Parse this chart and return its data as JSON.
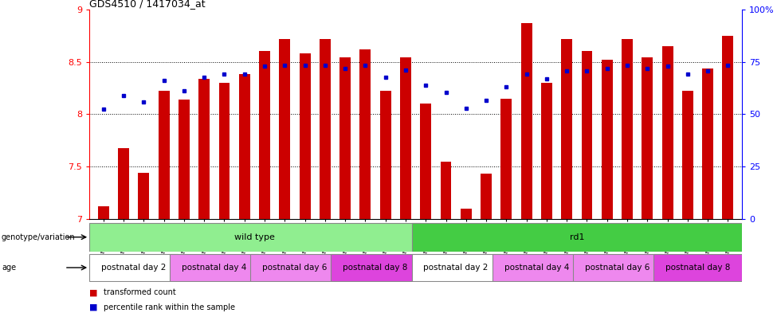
{
  "title": "GDS4510 / 1417034_at",
  "samples": [
    "GSM1024803",
    "GSM1024804",
    "GSM1024805",
    "GSM1024806",
    "GSM1024807",
    "GSM1024808",
    "GSM1024809",
    "GSM1024810",
    "GSM1024811",
    "GSM1024812",
    "GSM1024813",
    "GSM1024814",
    "GSM1024815",
    "GSM1024816",
    "GSM1024817",
    "GSM1024818",
    "GSM1024819",
    "GSM1024820",
    "GSM1024821",
    "GSM1024822",
    "GSM1024823",
    "GSM1024824",
    "GSM1024825",
    "GSM1024826",
    "GSM1024827",
    "GSM1024828",
    "GSM1024829",
    "GSM1024830",
    "GSM1024831",
    "GSM1024832",
    "GSM1024833",
    "GSM1024834"
  ],
  "bar_values": [
    7.12,
    7.68,
    7.44,
    8.22,
    8.14,
    8.34,
    8.3,
    8.38,
    8.6,
    8.72,
    8.58,
    8.72,
    8.54,
    8.62,
    8.22,
    8.54,
    8.1,
    7.55,
    7.1,
    7.43,
    8.15,
    8.87,
    8.3,
    8.72,
    8.6,
    8.52,
    8.72,
    8.54,
    8.65,
    8.22,
    8.44,
    8.75
  ],
  "percentile_values": [
    8.05,
    8.18,
    8.12,
    8.32,
    8.22,
    8.35,
    8.38,
    8.38,
    8.46,
    8.47,
    8.47,
    8.47,
    8.44,
    8.47,
    8.35,
    8.42,
    8.28,
    8.21,
    8.06,
    8.13,
    8.26,
    8.38,
    8.34,
    8.41,
    8.41,
    8.44,
    8.47,
    8.44,
    8.46,
    8.38,
    8.41,
    8.47
  ],
  "ylim": [
    7.0,
    9.0
  ],
  "yticks": [
    7.0,
    7.5,
    8.0,
    8.5,
    9.0
  ],
  "bar_color": "#cc0000",
  "dot_color": "#0000cc",
  "bar_bottom": 7.0,
  "genotype_groups": [
    {
      "label": "wild type",
      "start": 0,
      "end": 16,
      "color": "#90ee90"
    },
    {
      "label": "rd1",
      "start": 16,
      "end": 32,
      "color": "#44cc44"
    }
  ],
  "age_groups": [
    {
      "label": "postnatal day 2",
      "start": 0,
      "end": 4,
      "color": "#ffffff"
    },
    {
      "label": "postnatal day 4",
      "start": 4,
      "end": 8,
      "color": "#ee88ee"
    },
    {
      "label": "postnatal day 6",
      "start": 8,
      "end": 12,
      "color": "#ee88ee"
    },
    {
      "label": "postnatal day 8",
      "start": 12,
      "end": 16,
      "color": "#dd44dd"
    },
    {
      "label": "postnatal day 2",
      "start": 16,
      "end": 20,
      "color": "#ffffff"
    },
    {
      "label": "postnatal day 4",
      "start": 20,
      "end": 24,
      "color": "#ee88ee"
    },
    {
      "label": "postnatal day 6",
      "start": 24,
      "end": 28,
      "color": "#ee88ee"
    },
    {
      "label": "postnatal day 8",
      "start": 28,
      "end": 32,
      "color": "#dd44dd"
    }
  ],
  "right_yticks": [
    0,
    25,
    50,
    75,
    100
  ],
  "right_ylabels": [
    "0",
    "25",
    "50",
    "75",
    "100%"
  ],
  "hlines": [
    7.5,
    8.0,
    8.5
  ],
  "left_label": "genotype/variation",
  "age_label": "age",
  "legend": [
    {
      "color": "#cc0000",
      "label": "transformed count"
    },
    {
      "color": "#0000cc",
      "label": "percentile rank within the sample"
    }
  ]
}
